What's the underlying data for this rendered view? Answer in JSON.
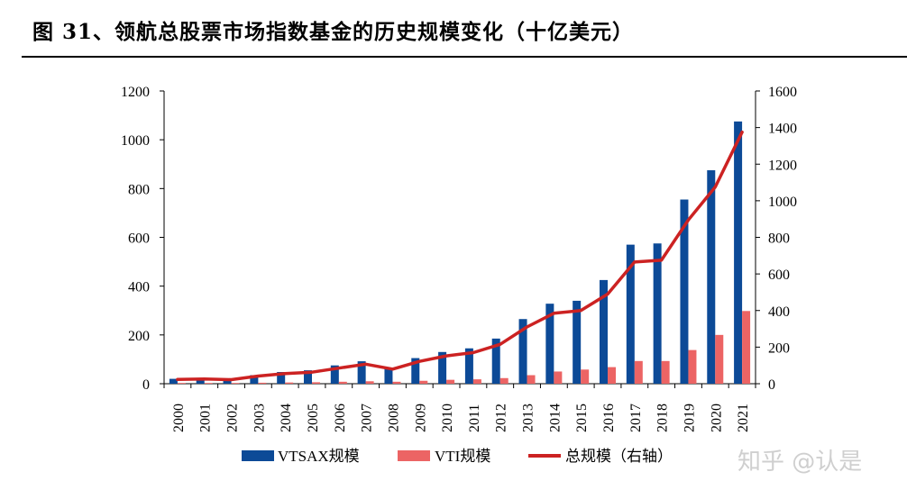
{
  "title": "图 31、领航总股票市场指数基金的历史规模变化（十亿美元）",
  "watermark": "知乎 @认是",
  "chart_data": {
    "type": "bar",
    "categories": [
      "2000",
      "2001",
      "2002",
      "2003",
      "2004",
      "2005",
      "2006",
      "2007",
      "2008",
      "2009",
      "2010",
      "2011",
      "2012",
      "2013",
      "2014",
      "2015",
      "2016",
      "2017",
      "2018",
      "2019",
      "2020",
      "2021"
    ],
    "series": [
      {
        "name": "VTSAX规模",
        "type": "bar",
        "axis": "left",
        "color": "#0c4a97",
        "values": [
          20,
          18,
          15,
          35,
          48,
          55,
          75,
          92,
          65,
          105,
          130,
          145,
          185,
          265,
          328,
          340,
          425,
          570,
          575,
          755,
          875,
          1075
        ]
      },
      {
        "name": "VTI规模",
        "type": "bar",
        "axis": "left",
        "color": "#ec6464",
        "values": [
          3,
          3,
          3,
          4,
          5,
          6,
          8,
          10,
          8,
          12,
          16,
          18,
          23,
          35,
          50,
          58,
          68,
          93,
          93,
          138,
          200,
          298
        ]
      },
      {
        "name": "总规模（右轴）",
        "type": "line",
        "axis": "right",
        "color": "#cc2222",
        "values": [
          23,
          26,
          22,
          42,
          55,
          63,
          85,
          107,
          80,
          122,
          152,
          170,
          215,
          310,
          385,
          400,
          490,
          665,
          675,
          895,
          1075,
          1375
        ]
      }
    ],
    "ylim_left": [
      0,
      1200
    ],
    "yticks_left": [
      0,
      200,
      400,
      600,
      800,
      1000,
      1200
    ],
    "ylim_right": [
      0,
      1600
    ],
    "yticks_right": [
      0,
      200,
      400,
      600,
      800,
      1000,
      1200,
      1400,
      1600
    ],
    "legend_position": "bottom"
  }
}
